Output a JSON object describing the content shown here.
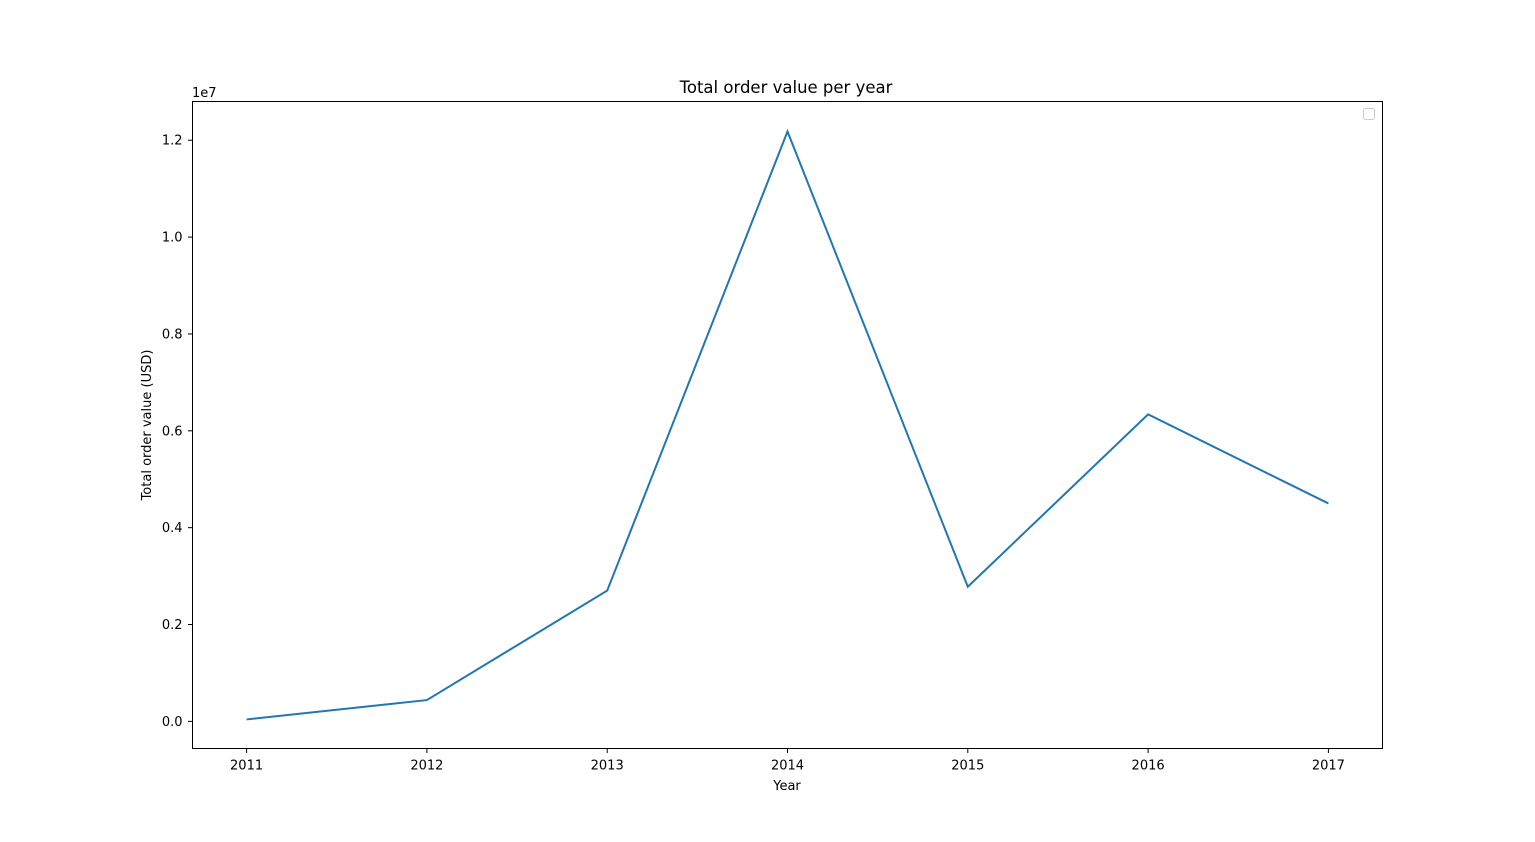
{
  "chart_data": {
    "type": "line",
    "title": "Total order value per year",
    "xlabel": "Year",
    "ylabel": "Total order value (USD)",
    "y_offset_label": "1e7",
    "x": [
      2011,
      2012,
      2013,
      2014,
      2015,
      2016,
      2017
    ],
    "series": [
      {
        "values": [
          40000,
          440000,
          2700000,
          12180000,
          2780000,
          6340000,
          4500000
        ],
        "color": "#1f77b4"
      }
    ],
    "xlim": [
      2010.7,
      2017.3
    ],
    "ylim": [
      -560000,
      12800000
    ],
    "x_ticks": [
      "2011",
      "2012",
      "2013",
      "2014",
      "2015",
      "2016",
      "2017"
    ],
    "y_ticks": [
      0,
      2000000,
      4000000,
      6000000,
      8000000,
      10000000,
      12000000
    ],
    "y_tick_labels": [
      "0.0",
      "0.2",
      "0.4",
      "0.6",
      "0.8",
      "1.0",
      "1.2"
    ],
    "grid": false,
    "legend": "top-right, empty"
  }
}
